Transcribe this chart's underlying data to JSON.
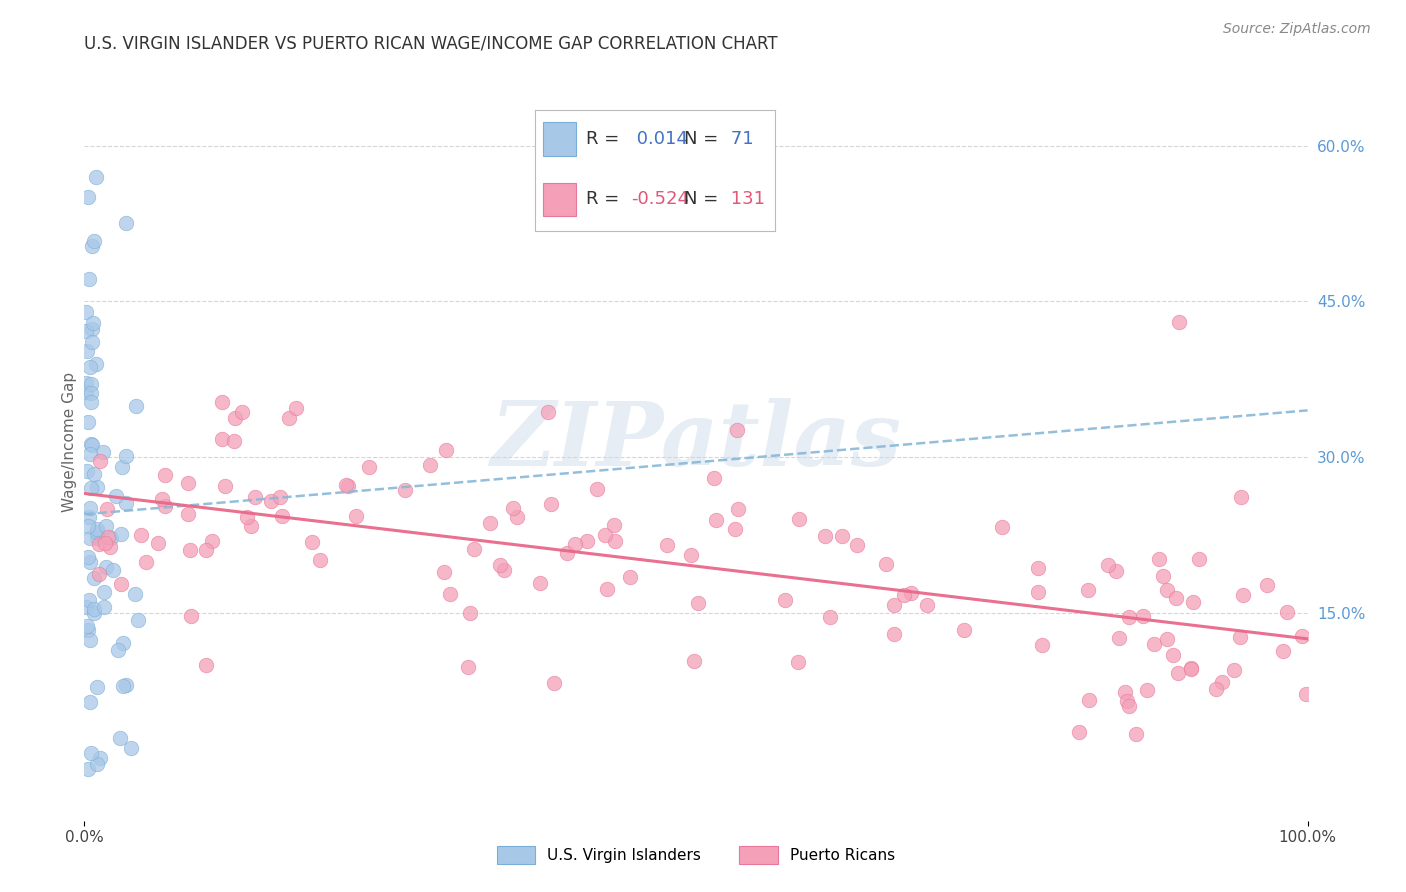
{
  "title": "U.S. VIRGIN ISLANDER VS PUERTO RICAN WAGE/INCOME GAP CORRELATION CHART",
  "source": "Source: ZipAtlas.com",
  "ylabel": "Wage/Income Gap",
  "ytick_labels": [
    "15.0%",
    "30.0%",
    "45.0%",
    "60.0%"
  ],
  "ytick_positions": [
    0.15,
    0.3,
    0.45,
    0.6
  ],
  "xlim": [
    0.0,
    1.0
  ],
  "ylim": [
    -0.05,
    0.68
  ],
  "legend_label1": "U.S. Virgin Islanders",
  "legend_label2": "Puerto Ricans",
  "blue_color": "#a8c8e8",
  "pink_color": "#f4a0b8",
  "blue_edge_color": "#7aaed6",
  "pink_edge_color": "#e87898",
  "blue_line_color": "#88b8d8",
  "pink_line_color": "#e86888",
  "background_color": "#ffffff",
  "watermark_text": "ZIPatlas",
  "watermark_color": "#c8d8e8",
  "grid_color": "#cccccc",
  "title_color": "#333333",
  "ytick_color": "#5b9bd5",
  "source_color": "#888888",
  "ylabel_color": "#666666",
  "legend_r1_label": "R = ",
  "legend_r1_val": " 0.014",
  "legend_n1_label": "N = ",
  "legend_n1_val": " 71",
  "legend_r2_label": "R = ",
  "legend_r2_val": "-0.524",
  "legend_n2_label": "N = ",
  "legend_n2_val": " 131",
  "legend_val_color_blue": "#4472c4",
  "legend_val_color_pink": "#e05878",
  "blue_line_start_y": 0.245,
  "blue_line_end_y": 0.345,
  "pink_line_start_y": 0.265,
  "pink_line_end_y": 0.125
}
